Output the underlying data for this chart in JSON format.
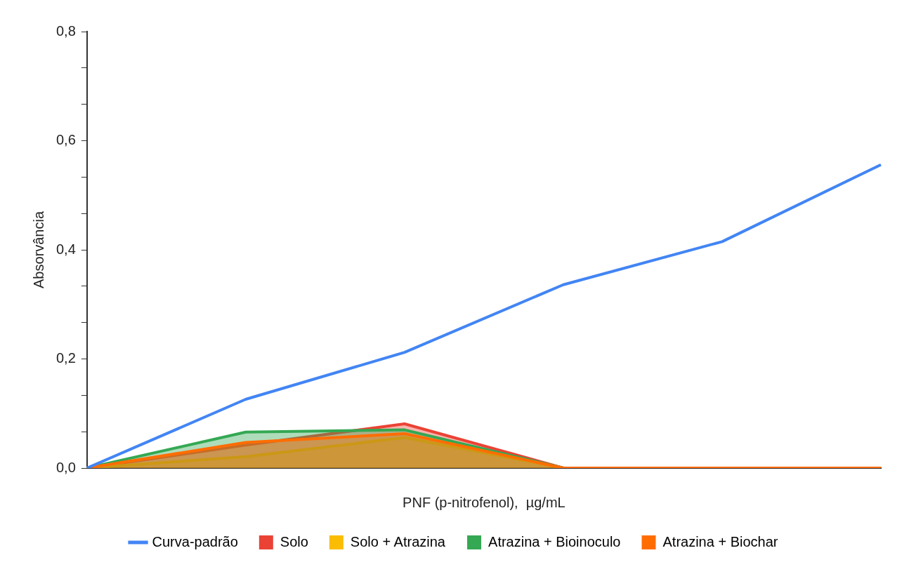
{
  "chart_data": {
    "type": "area",
    "xlabel": "PNF (p-nitrofenol),  µg/mL",
    "ylabel": "Absorvância",
    "categories": [
      null,
      null,
      null,
      null,
      null,
      null
    ],
    "series": [
      {
        "name": "Curva-padrão",
        "type": "line",
        "color": "#4285f4",
        "values": [
          0,
          0.126,
          0.212,
          0.336,
          0.415,
          0.556
        ]
      },
      {
        "name": "Solo",
        "color": "#ea4335",
        "values": [
          0,
          0.042,
          0.081,
          0,
          0,
          0
        ]
      },
      {
        "name": "Solo + Atrazina",
        "color": "#fbbc04",
        "values": [
          0,
          0.021,
          0.056,
          0,
          0,
          0
        ]
      },
      {
        "name": "Atrazina + Bioinoculo",
        "color": "#34a853",
        "values": [
          0,
          0.066,
          0.07,
          0,
          0,
          0
        ]
      },
      {
        "name": "Atrazina + Biochar",
        "color": "#ff6d01",
        "values": [
          0,
          0.047,
          0.063,
          0,
          0,
          0
        ]
      }
    ],
    "ylim": [
      0,
      0.8
    ],
    "yticks": [
      {
        "value": 0,
        "label": "0,0"
      },
      {
        "value": 0.0667,
        "label": null
      },
      {
        "value": 0.1333,
        "label": null
      },
      {
        "value": 0.2,
        "label": "0,2"
      },
      {
        "value": 0.2667,
        "label": null
      },
      {
        "value": 0.3333,
        "label": null
      },
      {
        "value": 0.4,
        "label": "0,4"
      },
      {
        "value": 0.4667,
        "label": null
      },
      {
        "value": 0.5333,
        "label": null
      },
      {
        "value": 0.6,
        "label": "0,6"
      },
      {
        "value": 0.6667,
        "label": null
      },
      {
        "value": 0.7333,
        "label": null
      },
      {
        "value": 0.8,
        "label": "0,8"
      }
    ],
    "grid": false,
    "legend": "bottom",
    "tick_labels": "y"
  }
}
